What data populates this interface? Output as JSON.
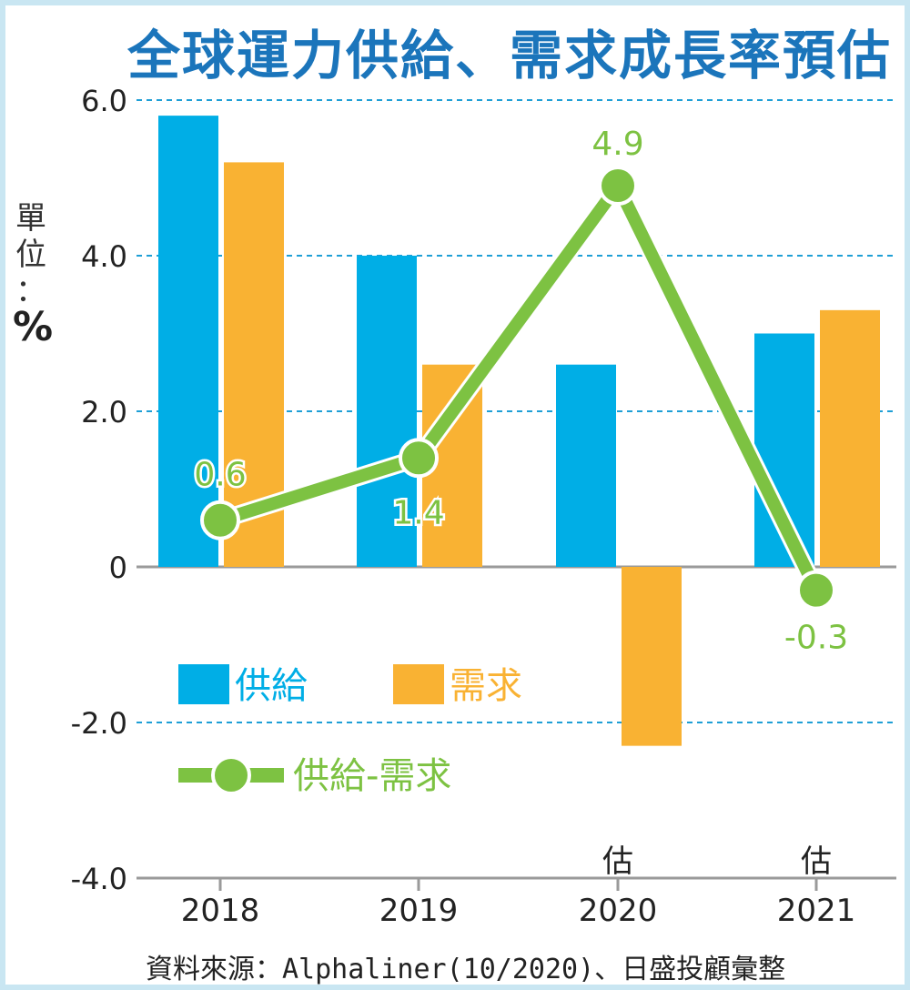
{
  "title": "全球運力供給、需求成長率預估",
  "unit": {
    "line1": "單",
    "line2": "位",
    "colon": "：",
    "symbol": "%"
  },
  "source": "資料來源：Alphaliner(10/2020)、日盛投顧彙整",
  "colors": {
    "supply": "#00aee6",
    "demand": "#f9b233",
    "net": "#7dc242",
    "grid": "#1e9fd6",
    "title": "#1b75bb"
  },
  "chart_data": {
    "type": "bar",
    "categories": [
      "2018",
      "2019",
      "2020",
      "2021"
    ],
    "estimate_marks": [
      "",
      "",
      "估",
      "估"
    ],
    "y_ticks": [
      "6.0",
      "4.0",
      "2.0",
      "0",
      "-2.0",
      "-4.0"
    ],
    "y_tick_values": [
      6,
      4,
      2,
      0,
      -2,
      -4
    ],
    "ylim": [
      -4,
      6
    ],
    "series": [
      {
        "name": "供給",
        "type": "bar",
        "values": [
          5.8,
          4.0,
          2.6,
          3.0
        ]
      },
      {
        "name": "需求",
        "type": "bar",
        "values": [
          5.2,
          2.6,
          -2.3,
          3.3
        ]
      },
      {
        "name": "供給-需求",
        "type": "line",
        "values": [
          0.6,
          1.4,
          4.9,
          -0.3
        ],
        "labels": [
          "0.6",
          "1.4",
          "4.9",
          "-0.3"
        ]
      }
    ],
    "legend_position": "lower-left",
    "grid": true
  }
}
